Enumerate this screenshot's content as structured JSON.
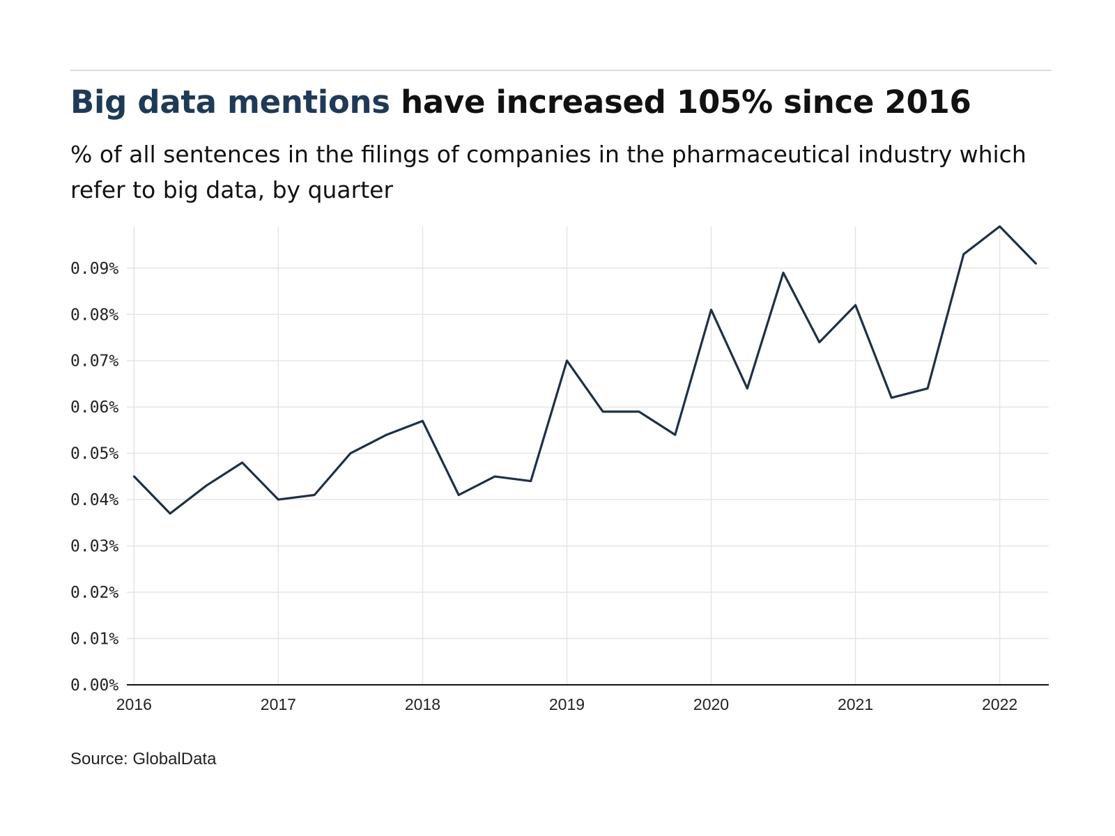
{
  "header": {
    "title_highlight": "Big data mentions",
    "title_rest": " have increased 105% since 2016",
    "subtitle": "% of all sentences in the filings of companies in the pharmaceutical industry which refer to big data, by quarter"
  },
  "footer": {
    "source": "Source: GlobalData"
  },
  "colors": {
    "line": "#1f3044",
    "highlight": "#1f3a56",
    "grid": "#e5e5e5",
    "axis": "#111111"
  },
  "chart_data": {
    "type": "line",
    "title": "Big data mentions have increased 105% since 2016",
    "xlabel": "",
    "ylabel": "",
    "ylim": [
      0,
      0.099
    ],
    "y_ticks": [
      0.0,
      0.01,
      0.02,
      0.03,
      0.04,
      0.05,
      0.06,
      0.07,
      0.08,
      0.09
    ],
    "y_tick_labels": [
      "0.00%",
      "0.01%",
      "0.02%",
      "0.03%",
      "0.04%",
      "0.05%",
      "0.06%",
      "0.07%",
      "0.08%",
      "0.09%"
    ],
    "x_ticks": [
      2016,
      2017,
      2018,
      2019,
      2020,
      2021,
      2022
    ],
    "x_tick_labels": [
      "2016",
      "2017",
      "2018",
      "2019",
      "2020",
      "2021",
      "2022"
    ],
    "xlim": [
      2015.95,
      2022.34
    ],
    "grid": true,
    "series": [
      {
        "x": [
          2016.0,
          2016.25,
          2016.5,
          2016.75,
          2017.0,
          2017.25,
          2017.5,
          2017.75,
          2018.0,
          2018.25,
          2018.5,
          2018.75,
          2019.0,
          2019.25,
          2019.5,
          2019.75,
          2020.0,
          2020.25,
          2020.5,
          2020.75,
          2021.0,
          2021.25,
          2021.5,
          2021.75,
          2022.0,
          2022.25
        ],
        "values": [
          0.045,
          0.037,
          0.043,
          0.048,
          0.04,
          0.041,
          0.05,
          0.054,
          0.057,
          0.041,
          0.045,
          0.044,
          0.07,
          0.059,
          0.059,
          0.054,
          0.081,
          0.064,
          0.089,
          0.074,
          0.082,
          0.062,
          0.064,
          0.093,
          0.099,
          0.091
        ]
      }
    ]
  }
}
